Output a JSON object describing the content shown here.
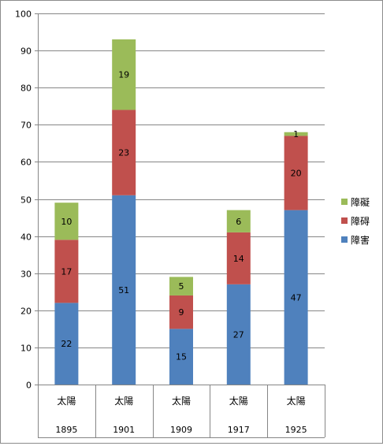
{
  "chart_data": {
    "type": "bar",
    "stacked": true,
    "categories": [
      "1895",
      "1901",
      "1909",
      "1917",
      "1925"
    ],
    "category_group_label": "太陽",
    "series": [
      {
        "name": "障害",
        "color": "#4F81BD",
        "values": [
          22,
          51,
          15,
          27,
          47
        ]
      },
      {
        "name": "障碍",
        "color": "#C0504D",
        "values": [
          17,
          23,
          9,
          14,
          20
        ]
      },
      {
        "name": "障礙",
        "color": "#9BBB59",
        "values": [
          10,
          19,
          5,
          6,
          1
        ]
      }
    ],
    "ylim": [
      0,
      100
    ],
    "y_ticks": [
      0,
      10,
      20,
      30,
      40,
      50,
      60,
      70,
      80,
      90,
      100
    ],
    "grid": true,
    "legend_position": "right"
  }
}
